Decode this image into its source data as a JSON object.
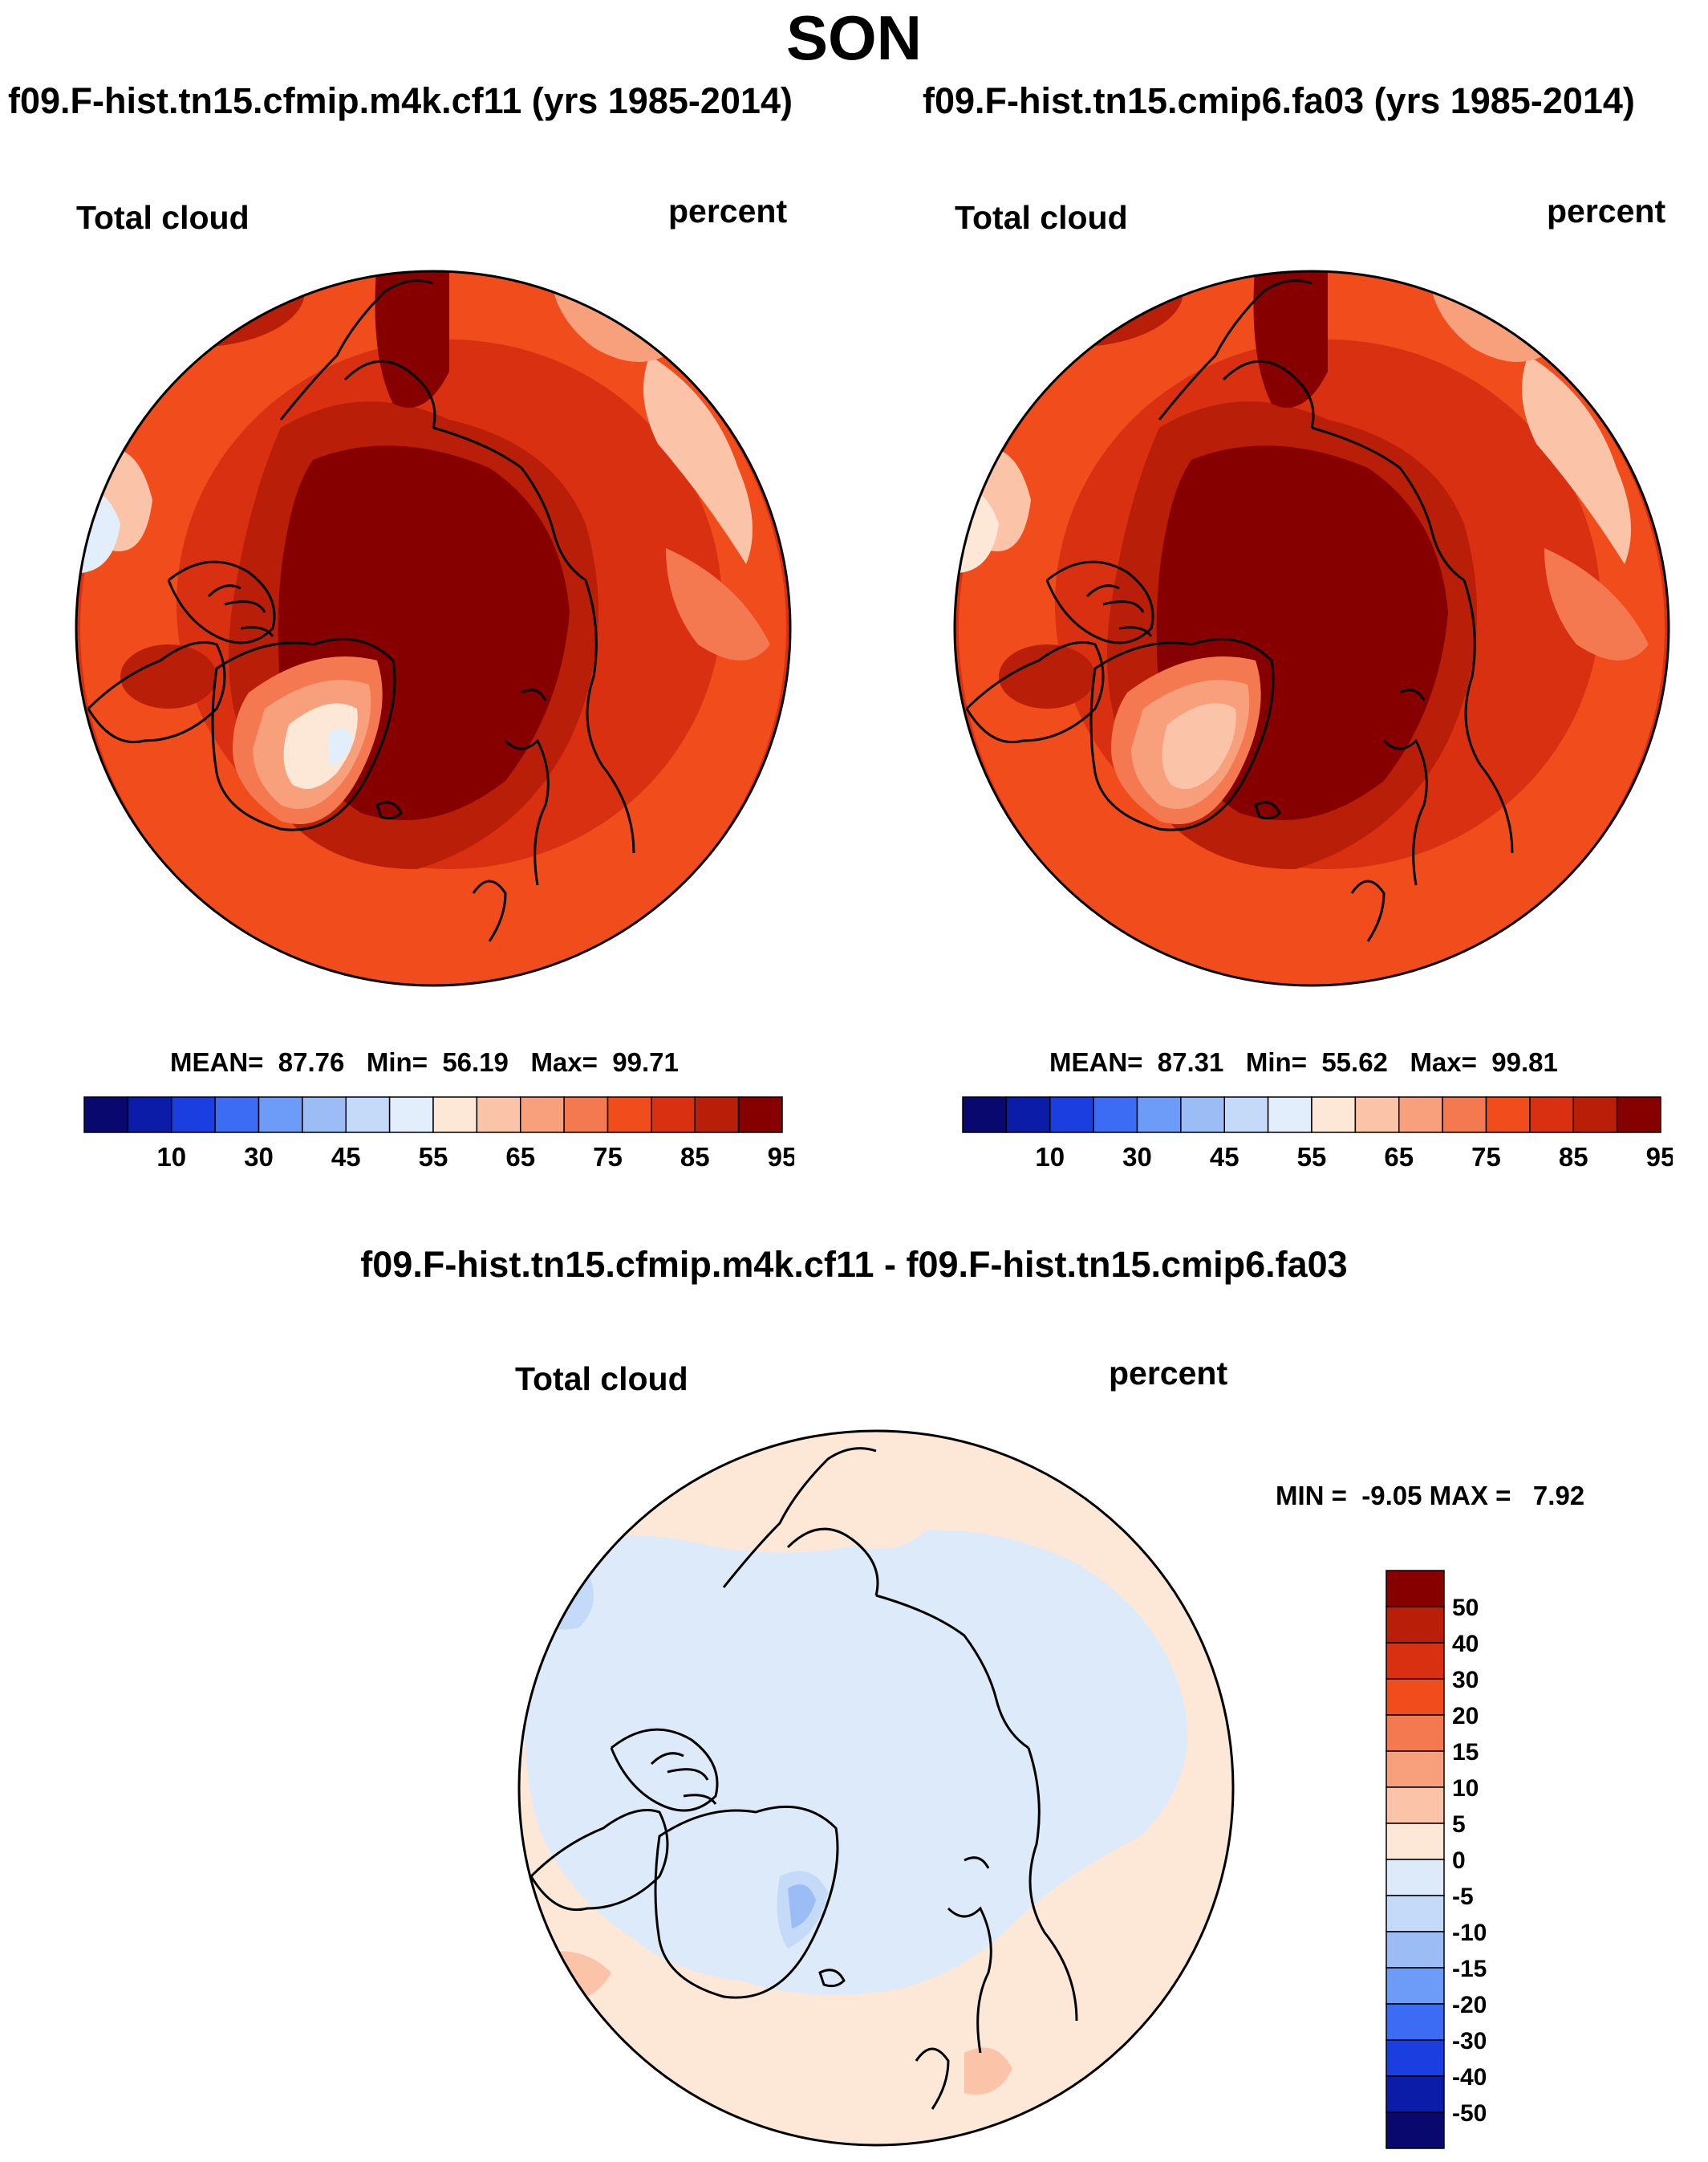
{
  "season": "SON",
  "colors": {
    "abs_levels": [
      "#08086e",
      "#0a1ca8",
      "#1a3ee0",
      "#3c6cf4",
      "#6c9cf8",
      "#9cbcf6",
      "#c4daf8",
      "#e2eefc",
      "#fde8d8",
      "#fbc4a8",
      "#f8a07c",
      "#f47850",
      "#f04c1c",
      "#d83010",
      "#b81e08",
      "#860000"
    ],
    "diff_levels": [
      "#08086e",
      "#0a1ca8",
      "#1a3ee0",
      "#3c6cf4",
      "#6c9cf8",
      "#9cbcf6",
      "#c4daf8",
      "#dceafa",
      "#fde8d8",
      "#fbc4a8",
      "#f8a07c",
      "#f47850",
      "#f04c1c",
      "#d83010",
      "#b81e08",
      "#860000"
    ],
    "land_outline": "#000000"
  },
  "panel1": {
    "case_title": "f09.F-hist.tn15.cfmip.m4k.cf11 (yrs 1985-2014)",
    "variable": "Total cloud",
    "units": "percent",
    "mean_label": "MEAN=",
    "mean": "87.76",
    "min_label": "Min=",
    "min": "56.19",
    "max_label": "Max=",
    "max": "99.71"
  },
  "panel2": {
    "case_title": "f09.F-hist.tn15.cmip6.fa03 (yrs 1985-2014)",
    "variable": "Total cloud",
    "units": "percent",
    "mean_label": "MEAN=",
    "mean": "87.31",
    "min_label": "Min=",
    "min": "55.62",
    "max_label": "Max=",
    "max": "99.81"
  },
  "panel3": {
    "case_title": "f09.F-hist.tn15.cfmip.m4k.cf11 - f09.F-hist.tn15.cmip6.fa03",
    "variable": "Total cloud",
    "units": "percent",
    "minmax_text": "MIN =  -9.05 MAX =   7.92"
  },
  "chart_data": [
    {
      "type": "heatmap",
      "projection": "north polar stereographic",
      "title": "f09.F-hist.tn15.cfmip.m4k.cf11 (yrs 1985-2014)",
      "variable": "Total cloud",
      "units": "percent",
      "mean": 87.76,
      "min": 56.19,
      "max": 99.71,
      "colorbar_ticks": [
        10,
        30,
        45,
        55,
        65,
        75,
        85,
        95
      ],
      "colorbar_levels": [
        5,
        10,
        20,
        30,
        40,
        45,
        50,
        55,
        60,
        65,
        70,
        75,
        80,
        85,
        90,
        95
      ]
    },
    {
      "type": "heatmap",
      "projection": "north polar stereographic",
      "title": "f09.F-hist.tn15.cmip6.fa03 (yrs 1985-2014)",
      "variable": "Total cloud",
      "units": "percent",
      "mean": 87.31,
      "min": 55.62,
      "max": 99.81,
      "colorbar_ticks": [
        10,
        30,
        45,
        55,
        65,
        75,
        85,
        95
      ],
      "colorbar_levels": [
        5,
        10,
        20,
        30,
        40,
        45,
        50,
        55,
        60,
        65,
        70,
        75,
        80,
        85,
        90,
        95
      ]
    },
    {
      "type": "heatmap",
      "projection": "north polar stereographic",
      "title": "f09.F-hist.tn15.cfmip.m4k.cf11 - f09.F-hist.tn15.cmip6.fa03",
      "variable": "Total cloud",
      "units": "percent",
      "min": -9.05,
      "max": 7.92,
      "colorbar_ticks": [
        "50",
        "40",
        "30",
        "20",
        "15",
        "10",
        "5",
        "0",
        "-5",
        "-10",
        "-15",
        "-20",
        "-30",
        "-40",
        "-50"
      ]
    }
  ]
}
